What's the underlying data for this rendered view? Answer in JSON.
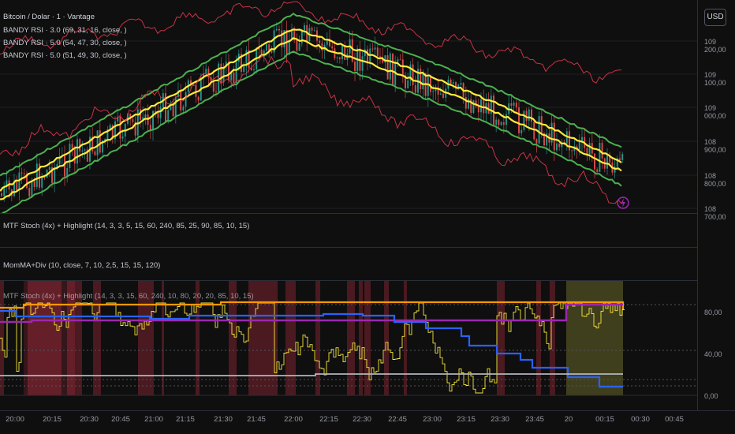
{
  "main_pane": {
    "title": "Bitcoin / Dolar · 1 · Vantage",
    "indicators": [
      "BANDY RSI · 3.0 (69, 31, 16, close, )",
      "BANDY RSI · 5.0 (54, 47, 30, close, )",
      "BANDY RSI · 5.0 (51, 49, 30, close, )"
    ],
    "currency_button": "USD",
    "price_ticks": [
      "109 200,00",
      "109 100,00",
      "109 000,00",
      "108 900,00",
      "108 800,00",
      "108 700,00"
    ],
    "alert_icon": "lightning-icon"
  },
  "pane2": {
    "title": "MTF Stoch (4x) + Highlight (14, 3, 3, 5, 15, 60, 240, 85, 25, 90, 85, 10, 15)"
  },
  "pane3": {
    "title": "MomMA+Div (10, close, 7, 10, 2,5, 15, 15, 120)"
  },
  "pane4": {
    "title": "MTF Stoch (4x) + Highlight (14, 3, 3, 15, 60, 240, 10, 80, 20, 20, 85, 10, 15)",
    "ticks": [
      "80,00",
      "40,00",
      "0,00"
    ]
  },
  "time_ticks": [
    "20:00",
    "20:15",
    "20:30",
    "20:45",
    "21:00",
    "21:15",
    "21:30",
    "21:45",
    "22:00",
    "22:15",
    "22:30",
    "22:45",
    "23:00",
    "23:15",
    "23:30",
    "23:45",
    "20",
    "00:15",
    "00:30",
    "00:45"
  ],
  "colors": {
    "background": "#0f0f0f",
    "up_candle": "#26a69a",
    "down_candle": "#ef5350",
    "band_green": "#4caf50",
    "band_yellow": "#ffeb3b",
    "rsi_red": "#e53950",
    "stoch_orange": "#ff9800",
    "stoch_blue": "#2962ff",
    "stoch_purple": "#9c27b0",
    "stoch_yellow": "#f5e53b",
    "stoch_gray": "#b2b5be"
  }
}
